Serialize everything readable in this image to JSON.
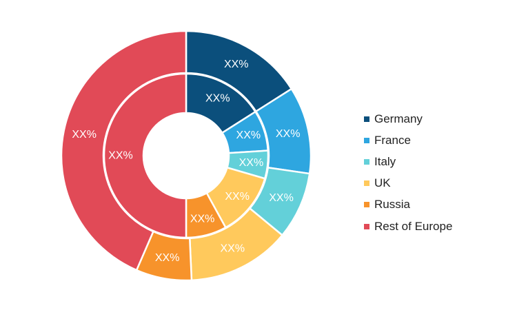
{
  "chart_data": {
    "type": "donut",
    "categories": [
      "Germany",
      "France",
      "Italy",
      "UK",
      "Russia",
      "Rest of Europe"
    ],
    "colors": [
      "#0b4f7c",
      "#2ea6e0",
      "#63d0d9",
      "#ffc95c",
      "#f7932b",
      "#e14a57"
    ],
    "series": [
      {
        "ring": "outer",
        "values": [
          16.0,
          11.3,
          8.7,
          13.3,
          7.2,
          43.5
        ],
        "labels": [
          "XX%",
          "XX%",
          "XX%",
          "XX%",
          "XX%",
          "XX%"
        ]
      },
      {
        "ring": "inner",
        "values": [
          16.0,
          8.0,
          5.5,
          12.5,
          8.0,
          50.0
        ],
        "labels": [
          "XX%",
          "XX%",
          "XX%",
          "XX%",
          "XX%",
          "XX%"
        ]
      }
    ],
    "legend": {
      "position": "right",
      "entries": [
        "Germany",
        "France",
        "Italy",
        "UK",
        "Russia",
        "Rest of Europe"
      ]
    }
  }
}
